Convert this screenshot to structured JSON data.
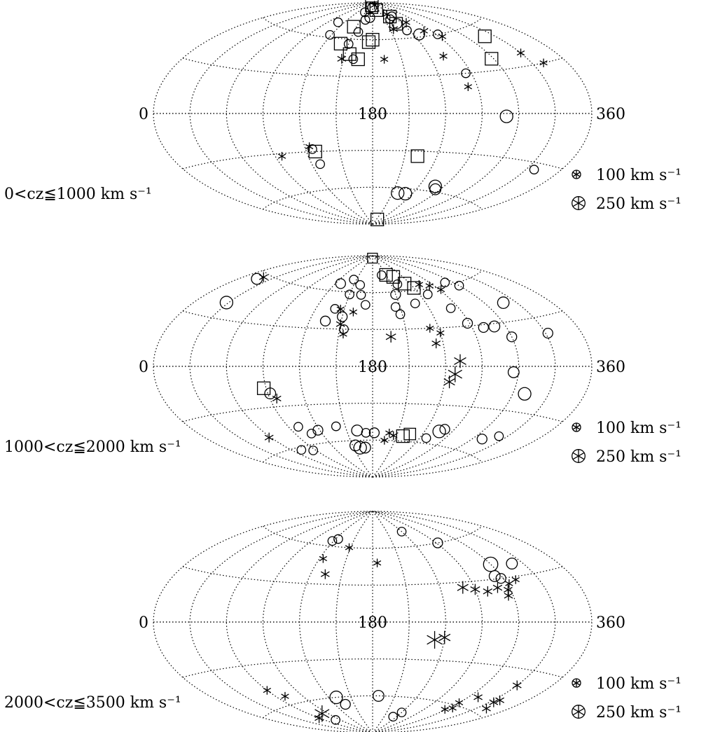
{
  "chart_data": [
    {
      "type": "scatter",
      "projection": "aitoff",
      "title": "",
      "xlabel": "",
      "ylabel": "",
      "tick_labels": [
        "0",
        "180",
        "360"
      ],
      "redshift_range_label": "0<cz≦1000 km s⁻¹",
      "legend": [
        {
          "label": "100 km s⁻¹",
          "size": 100
        },
        {
          "label": "250 km s⁻¹",
          "size": 250
        }
      ],
      "legend_position": "right",
      "grid": true,
      "series": [
        {
          "marker": "circle",
          "points": [
            {
              "l": 108,
              "b": 72,
              "size": 80
            },
            {
              "l": 118,
              "b": 62,
              "size": 80
            },
            {
              "l": 148,
              "b": 82,
              "size": 80
            },
            {
              "l": 162,
              "b": 76,
              "size": 80
            },
            {
              "l": 157,
              "b": 66,
              "size": 80
            },
            {
              "l": 150,
              "b": 56,
              "size": 80
            },
            {
              "l": 160,
              "b": 44,
              "size": 80
            },
            {
              "l": 175,
              "b": 86,
              "size": 80
            },
            {
              "l": 172,
              "b": 78,
              "size": 100
            },
            {
              "l": 230,
              "b": 72,
              "size": 100
            },
            {
              "l": 236,
              "b": 66,
              "size": 80
            },
            {
              "l": 236,
              "b": 78,
              "size": 80
            },
            {
              "l": 224,
              "b": 76,
              "size": 80
            },
            {
              "l": 272,
              "b": 60,
              "size": 80
            },
            {
              "l": 265,
              "b": 30,
              "size": 80
            },
            {
              "l": 290,
              "b": -2,
              "size": 150
            },
            {
              "l": 248,
              "b": 62,
              "size": 120
            },
            {
              "l": 126,
              "b": -28,
              "size": 80
            },
            {
              "l": 128,
              "b": -40,
              "size": 80
            },
            {
              "l": 337,
              "b": -34,
              "size": 80
            },
            {
              "l": 218,
              "b": -64,
              "size": 150
            },
            {
              "l": 230,
              "b": -64,
              "size": 150
            },
            {
              "l": 260,
              "b": -56,
              "size": 150
            },
            {
              "l": 264,
              "b": -58,
              "size": 120
            }
          ]
        },
        {
          "marker": "square",
          "points": [
            {
              "l": 168,
              "b": 88,
              "size": 150
            },
            {
              "l": 175,
              "b": 86,
              "size": 130
            },
            {
              "l": 200,
              "b": 84,
              "size": 150
            },
            {
              "l": 145,
              "b": 70,
              "size": 150
            },
            {
              "l": 140,
              "b": 56,
              "size": 150
            },
            {
              "l": 180,
              "b": 60,
              "size": 150
            },
            {
              "l": 175,
              "b": 58,
              "size": 150
            },
            {
              "l": 155,
              "b": 48,
              "size": 150
            },
            {
              "l": 165,
              "b": 44,
              "size": 150
            },
            {
              "l": 230,
              "b": 78,
              "size": 150
            },
            {
              "l": 228,
              "b": 72,
              "size": 150
            },
            {
              "l": 298,
              "b": 38,
              "size": 150
            },
            {
              "l": 320,
              "b": 52,
              "size": 150
            },
            {
              "l": 128,
              "b": -30,
              "size": 150
            },
            {
              "l": 222,
              "b": -34,
              "size": 150
            },
            {
              "l": 217,
              "b": -86,
              "size": 150
            }
          ]
        },
        {
          "marker": "asterisk",
          "points": [
            {
              "l": 208,
              "b": 88,
              "size": 80
            },
            {
              "l": 228,
              "b": 80,
              "size": 80
            },
            {
              "l": 250,
              "b": 72,
              "size": 80
            },
            {
              "l": 260,
              "b": 64,
              "size": 80
            },
            {
              "l": 274,
              "b": 58,
              "size": 80
            },
            {
              "l": 192,
              "b": 44,
              "size": 80
            },
            {
              "l": 254,
              "b": 44,
              "size": 80
            },
            {
              "l": 262,
              "b": 20,
              "size": 80
            },
            {
              "l": 330,
              "b": 38,
              "size": 80
            },
            {
              "l": 340,
              "b": 30,
              "size": 80
            },
            {
              "l": 96,
              "b": -32,
              "size": 80
            },
            {
              "l": 124,
              "b": -26,
              "size": 80
            },
            {
              "l": 216,
              "b": 68,
              "size": 100
            },
            {
              "l": 148,
              "b": 44,
              "size": 100
            }
          ]
        }
      ]
    },
    {
      "type": "scatter",
      "projection": "aitoff",
      "title": "",
      "xlabel": "",
      "ylabel": "",
      "tick_labels": [
        "0",
        "180",
        "360"
      ],
      "redshift_range_label": "1000<cz≦2000 km s⁻¹",
      "legend": [
        {
          "label": "100 km s⁻¹",
          "size": 100
        },
        {
          "label": "250 km s⁻¹",
          "size": 250
        }
      ],
      "legend_position": "right",
      "grid": true,
      "series": [
        {
          "marker": "circle",
          "points": [
            {
              "l": 16,
              "b": 56,
              "size": 120
            },
            {
              "l": 28,
              "b": 40,
              "size": 150
            },
            {
              "l": 128,
              "b": 66,
              "size": 100
            },
            {
              "l": 145,
              "b": 70,
              "size": 80
            },
            {
              "l": 160,
              "b": 66,
              "size": 80
            },
            {
              "l": 200,
              "b": 74,
              "size": 80
            },
            {
              "l": 220,
              "b": 66,
              "size": 80
            },
            {
              "l": 210,
              "b": 58,
              "size": 100
            },
            {
              "l": 205,
              "b": 48,
              "size": 80
            },
            {
              "l": 208,
              "b": 42,
              "size": 80
            },
            {
              "l": 228,
              "b": 50,
              "size": 80
            },
            {
              "l": 250,
              "b": 56,
              "size": 80
            },
            {
              "l": 262,
              "b": 44,
              "size": 80
            },
            {
              "l": 268,
              "b": 32,
              "size": 100
            },
            {
              "l": 280,
              "b": 28,
              "size": 100
            },
            {
              "l": 290,
              "b": 28,
              "size": 120
            },
            {
              "l": 300,
              "b": 20,
              "size": 100
            },
            {
              "l": 332,
              "b": 20,
              "size": 100
            },
            {
              "l": 318,
              "b": 42,
              "size": 130
            },
            {
              "l": 300,
              "b": 58,
              "size": 80
            },
            {
              "l": 290,
              "b": 62,
              "size": 80
            },
            {
              "l": 140,
              "b": 46,
              "size": 80
            },
            {
              "l": 150,
              "b": 40,
              "size": 100
            },
            {
              "l": 135,
              "b": 36,
              "size": 100
            },
            {
              "l": 154,
              "b": 30,
              "size": 80
            },
            {
              "l": 165,
              "b": 58,
              "size": 80
            },
            {
              "l": 172,
              "b": 50,
              "size": 80
            },
            {
              "l": 150,
              "b": 58,
              "size": 80
            },
            {
              "l": 296,
              "b": -4,
              "size": 120
            },
            {
              "l": 310,
              "b": -18,
              "size": 150
            },
            {
              "l": 92,
              "b": -20,
              "size": 120
            },
            {
              "l": 100,
              "b": -46,
              "size": 80
            },
            {
              "l": 118,
              "b": -50,
              "size": 100
            },
            {
              "l": 108,
              "b": -52,
              "size": 80
            },
            {
              "l": 140,
              "b": -48,
              "size": 80
            },
            {
              "l": 162,
              "b": -52,
              "size": 120
            },
            {
              "l": 172,
              "b": -54,
              "size": 80
            },
            {
              "l": 182,
              "b": -54,
              "size": 100
            },
            {
              "l": 154,
              "b": -64,
              "size": 120
            },
            {
              "l": 160,
              "b": -66,
              "size": 150
            },
            {
              "l": 168,
              "b": -66,
              "size": 120
            },
            {
              "l": 260,
              "b": -48,
              "size": 100
            },
            {
              "l": 256,
              "b": -50,
              "size": 150
            },
            {
              "l": 248,
              "b": -56,
              "size": 80
            },
            {
              "l": 310,
              "b": -50,
              "size": 100
            },
            {
              "l": 322,
              "b": -46,
              "size": 80
            },
            {
              "l": 72,
              "b": -62,
              "size": 80
            },
            {
              "l": 86,
              "b": -64,
              "size": 80
            }
          ]
        },
        {
          "marker": "square",
          "points": [
            {
              "l": 210,
              "b": 74,
              "size": 150
            },
            {
              "l": 222,
              "b": 72,
              "size": 150
            },
            {
              "l": 232,
              "b": 66,
              "size": 150
            },
            {
              "l": 240,
              "b": 62,
              "size": 150
            },
            {
              "l": 88,
              "b": -16,
              "size": 150
            },
            {
              "l": 218,
              "b": -56,
              "size": 150
            },
            {
              "l": 225,
              "b": -54,
              "size": 130
            },
            {
              "l": 178,
              "b": 88,
              "size": 100
            }
          ]
        },
        {
          "marker": "asterisk",
          "points": [
            {
              "l": 18,
              "b": 58,
              "size": 100
            },
            {
              "l": 58,
              "b": -50,
              "size": 100
            },
            {
              "l": 252,
              "b": 64,
              "size": 80
            },
            {
              "l": 264,
              "b": 62,
              "size": 80
            },
            {
              "l": 272,
              "b": 58,
              "size": 80
            },
            {
              "l": 146,
              "b": 46,
              "size": 80
            },
            {
              "l": 160,
              "b": 44,
              "size": 80
            },
            {
              "l": 150,
              "b": 34,
              "size": 100
            },
            {
              "l": 154,
              "b": 26,
              "size": 80
            },
            {
              "l": 196,
              "b": 24,
              "size": 130
            },
            {
              "l": 232,
              "b": 30,
              "size": 80
            },
            {
              "l": 240,
              "b": 26,
              "size": 80
            },
            {
              "l": 234,
              "b": 18,
              "size": 100
            },
            {
              "l": 252,
              "b": 4,
              "size": 170
            },
            {
              "l": 248,
              "b": -6,
              "size": 210
            },
            {
              "l": 244,
              "b": -12,
              "size": 150
            },
            {
              "l": 96,
              "b": -24,
              "size": 100
            },
            {
              "l": 200,
              "b": -54,
              "size": 80
            },
            {
              "l": 206,
              "b": -56,
              "size": 80
            },
            {
              "l": 196,
              "b": -60,
              "size": 80
            }
          ]
        }
      ]
    },
    {
      "type": "scatter",
      "projection": "aitoff",
      "title": "",
      "xlabel": "",
      "ylabel": "",
      "tick_labels": [
        "0",
        "180",
        "360"
      ],
      "redshift_range_label": "2000<cz≦3500 km s⁻¹",
      "legend": [
        {
          "label": "100 km s⁻¹",
          "size": 100
        },
        {
          "label": "250 km s⁻¹",
          "size": 250
        }
      ],
      "legend_position": "right",
      "grid": true,
      "series": [
        {
          "marker": "circle",
          "points": [
            {
              "l": 118,
              "b": 64,
              "size": 80
            },
            {
              "l": 124,
              "b": 66,
              "size": 80
            },
            {
              "l": 240,
              "b": 72,
              "size": 80
            },
            {
              "l": 272,
              "b": 60,
              "size": 100
            },
            {
              "l": 300,
              "b": 40,
              "size": 180
            },
            {
              "l": 320,
              "b": 38,
              "size": 120
            },
            {
              "l": 294,
              "b": 32,
              "size": 120
            },
            {
              "l": 298,
              "b": 30,
              "size": 100
            },
            {
              "l": 130,
              "b": -60,
              "size": 150
            },
            {
              "l": 136,
              "b": -66,
              "size": 100
            },
            {
              "l": 188,
              "b": -60,
              "size": 120
            },
            {
              "l": 232,
              "b": -76,
              "size": 80
            },
            {
              "l": 240,
              "b": -72,
              "size": 80
            },
            {
              "l": 80,
              "b": -76,
              "size": 80
            }
          ]
        },
        {
          "marker": "asterisk",
          "points": [
            {
              "l": 148,
              "b": 60,
              "size": 80
            },
            {
              "l": 185,
              "b": 48,
              "size": 80
            },
            {
              "l": 124,
              "b": 50,
              "size": 80
            },
            {
              "l": 134,
              "b": 38,
              "size": 100
            },
            {
              "l": 260,
              "b": 26,
              "size": 150
            },
            {
              "l": 270,
              "b": 24,
              "size": 120
            },
            {
              "l": 280,
              "b": 22,
              "size": 110
            },
            {
              "l": 290,
              "b": 24,
              "size": 110
            },
            {
              "l": 298,
              "b": 22,
              "size": 100
            },
            {
              "l": 296,
              "b": 18,
              "size": 100
            },
            {
              "l": 302,
              "b": 26,
              "size": 80
            },
            {
              "l": 310,
              "b": 28,
              "size": 80
            },
            {
              "l": 232,
              "b": -14,
              "size": 240
            },
            {
              "l": 240,
              "b": -12,
              "size": 160
            },
            {
              "l": 60,
              "b": -48,
              "size": 80
            },
            {
              "l": 70,
              "b": -54,
              "size": 80
            },
            {
              "l": 80,
              "b": -70,
              "size": 220
            },
            {
              "l": 60,
              "b": -72,
              "size": 100
            },
            {
              "l": 310,
              "b": -52,
              "size": 100
            },
            {
              "l": 300,
              "b": -58,
              "size": 80
            },
            {
              "l": 298,
              "b": -64,
              "size": 80
            },
            {
              "l": 304,
              "b": -62,
              "size": 80
            },
            {
              "l": 330,
              "b": -40,
              "size": 100
            },
            {
              "l": 336,
              "b": -50,
              "size": 100
            },
            {
              "l": 334,
              "b": -52,
              "size": 100
            },
            {
              "l": 340,
              "b": -56,
              "size": 100
            }
          ]
        }
      ]
    }
  ]
}
